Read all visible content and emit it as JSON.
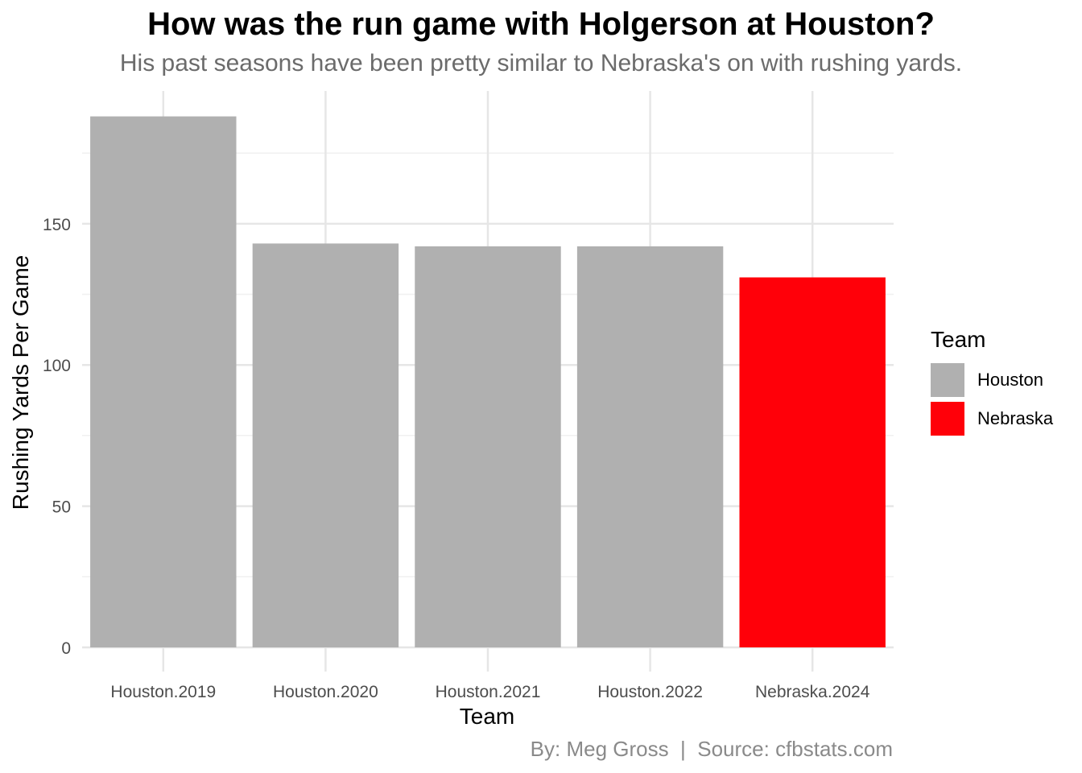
{
  "title": "How was the run game with Holgerson at Houston?",
  "subtitle": "His past seasons have been pretty similar to Nebraska's on with rushing yards.",
  "caption": "By: Meg Gross  |  Source: cfbstats.com",
  "legend": {
    "title": "Team",
    "items": [
      {
        "label": "Houston",
        "color": "#b0b0b0"
      },
      {
        "label": "Nebraska",
        "color": "#ff0009"
      }
    ]
  },
  "chart_data": {
    "type": "bar",
    "title": "How was the run game with Holgerson at Houston?",
    "subtitle": "His past seasons have been pretty similar to Nebraska's on with rushing yards.",
    "xlabel": "Team",
    "ylabel": "Rushing Yards Per Game",
    "categories": [
      "Houston.2019",
      "Houston.2020",
      "Houston.2021",
      "Houston.2022",
      "Nebraska.2024"
    ],
    "values": [
      188,
      143,
      142,
      142,
      131
    ],
    "groups": [
      "Houston",
      "Houston",
      "Houston",
      "Houston",
      "Nebraska"
    ],
    "colors": {
      "Houston": "#b0b0b0",
      "Nebraska": "#ff0009"
    },
    "ylim": [
      0,
      197
    ],
    "yticks": [
      0,
      50,
      100,
      150
    ],
    "grid": true,
    "legend_position": "right"
  }
}
